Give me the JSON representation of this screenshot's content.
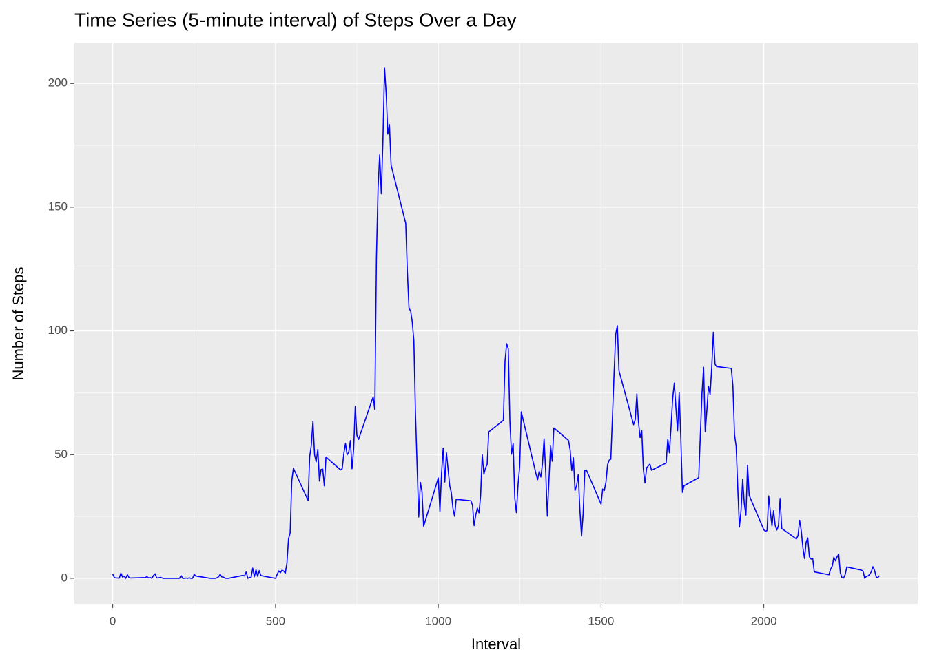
{
  "chart_data": {
    "type": "line",
    "title": "Time Series (5-minute interval) of Steps Over a Day",
    "x_label": "Interval",
    "y_label": "Number of Steps",
    "color": "#0000ff",
    "grid": true,
    "minor_grid": true,
    "xlim": [
      -117.75,
      2472.75
    ],
    "ylim": [
      -10.31,
      216.48
    ],
    "xticks": [
      0,
      500,
      1000,
      1500,
      2000
    ],
    "yticks": [
      0,
      50,
      100,
      150,
      200
    ],
    "x": [
      0,
      5,
      10,
      15,
      20,
      25,
      30,
      35,
      40,
      45,
      50,
      55,
      100,
      105,
      110,
      115,
      120,
      125,
      130,
      135,
      140,
      145,
      150,
      155,
      200,
      205,
      210,
      215,
      220,
      225,
      230,
      235,
      240,
      245,
      250,
      255,
      300,
      305,
      310,
      315,
      320,
      325,
      330,
      335,
      340,
      345,
      350,
      355,
      400,
      405,
      410,
      415,
      420,
      425,
      430,
      435,
      440,
      445,
      450,
      455,
      500,
      505,
      510,
      515,
      520,
      525,
      530,
      535,
      540,
      545,
      550,
      555,
      600,
      605,
      610,
      615,
      620,
      625,
      630,
      635,
      640,
      645,
      650,
      655,
      700,
      705,
      710,
      715,
      720,
      725,
      730,
      735,
      740,
      745,
      750,
      755,
      800,
      805,
      810,
      815,
      820,
      825,
      830,
      835,
      840,
      845,
      850,
      855,
      900,
      905,
      910,
      915,
      920,
      925,
      930,
      935,
      940,
      945,
      950,
      955,
      1000,
      1005,
      1010,
      1015,
      1020,
      1025,
      1030,
      1035,
      1040,
      1045,
      1050,
      1055,
      1100,
      1105,
      1110,
      1115,
      1120,
      1125,
      1130,
      1135,
      1140,
      1145,
      1150,
      1155,
      1200,
      1205,
      1210,
      1215,
      1220,
      1225,
      1230,
      1235,
      1240,
      1245,
      1250,
      1255,
      1300,
      1305,
      1310,
      1315,
      1320,
      1325,
      1330,
      1335,
      1340,
      1345,
      1350,
      1355,
      1400,
      1405,
      1410,
      1415,
      1420,
      1425,
      1430,
      1435,
      1440,
      1445,
      1450,
      1455,
      1500,
      1505,
      1510,
      1515,
      1520,
      1525,
      1530,
      1535,
      1540,
      1545,
      1550,
      1555,
      1600,
      1605,
      1610,
      1615,
      1620,
      1625,
      1630,
      1635,
      1640,
      1645,
      1650,
      1655,
      1700,
      1705,
      1710,
      1715,
      1720,
      1725,
      1730,
      1735,
      1740,
      1745,
      1750,
      1755,
      1800,
      1805,
      1810,
      1815,
      1820,
      1825,
      1830,
      1835,
      1840,
      1845,
      1850,
      1855,
      1900,
      1905,
      1910,
      1915,
      1920,
      1925,
      1930,
      1935,
      1940,
      1945,
      1950,
      1955,
      2000,
      2005,
      2010,
      2015,
      2020,
      2025,
      2030,
      2035,
      2040,
      2045,
      2050,
      2055,
      2100,
      2105,
      2110,
      2115,
      2120,
      2125,
      2130,
      2135,
      2140,
      2145,
      2150,
      2155,
      2200,
      2205,
      2210,
      2215,
      2220,
      2225,
      2230,
      2235,
      2240,
      2245,
      2250,
      2255,
      2300,
      2305,
      2310,
      2315,
      2320,
      2325,
      2330,
      2335,
      2340,
      2345,
      2350,
      2355
    ],
    "values": [
      1.72,
      0.34,
      0.13,
      0.15,
      0.08,
      2.09,
      0.53,
      0.87,
      0,
      1.47,
      0.3,
      0.13,
      0.32,
      0.68,
      0.15,
      0.34,
      0,
      1.11,
      1.83,
      0.17,
      0.17,
      0.38,
      0.26,
      0,
      0,
      0,
      1.13,
      0,
      0,
      0.13,
      0,
      0.23,
      0,
      0,
      1.55,
      0.94,
      0,
      0,
      0,
      0,
      0.21,
      0.62,
      1.62,
      0.58,
      0.49,
      0.08,
      0,
      0,
      1.19,
      0.94,
      2.57,
      0,
      0.34,
      0.36,
      4.11,
      0.66,
      3.49,
      0.83,
      3.11,
      1.11,
      0,
      1.57,
      3,
      2.25,
      3.32,
      2.96,
      2.09,
      6.06,
      16.02,
      18.34,
      39.45,
      44.49,
      31.49,
      49.26,
      53.77,
      63.45,
      49.96,
      47.08,
      52.15,
      39.34,
      44.02,
      44.17,
      37.36,
      49.04,
      43.81,
      44.38,
      50.51,
      54.51,
      49.92,
      50.98,
      55.68,
      44.32,
      52.26,
      69.55,
      57.85,
      56.15,
      73.38,
      68.21,
      129.43,
      157.53,
      171.15,
      155.4,
      177.3,
      206.17,
      195.92,
      179.57,
      183.4,
      167.02,
      143.45,
      124.04,
      109.11,
      108.11,
      103.72,
      95.97,
      66.21,
      45.23,
      24.79,
      38.75,
      34.98,
      21.06,
      40.57,
      26.98,
      42.42,
      52.66,
      38.92,
      50.79,
      44.28,
      37.42,
      34.7,
      28.34,
      25.09,
      31.94,
      31.36,
      29.68,
      21.32,
      25.55,
      28.38,
      26.47,
      33.43,
      49.98,
      42.04,
      44.6,
      46.04,
      59.19,
      63.87,
      87.7,
      94.85,
      92.77,
      63.4,
      50.17,
      54.47,
      32.42,
      26.53,
      37.74,
      45.06,
      67.28,
      42.34,
      39.89,
      43.26,
      40.98,
      46.25,
      56.43,
      42.75,
      25.13,
      39.96,
      53.55,
      47.32,
      60.81,
      55.75,
      51.96,
      43.58,
      48.7,
      35.47,
      37.55,
      41.85,
      27.51,
      17.11,
      26.08,
      43.62,
      43.77,
      30.02,
      36.08,
      35.49,
      38.85,
      45.96,
      47.75,
      48.13,
      65.32,
      82.91,
      98.66,
      102.11,
      83.96,
      62.13,
      64.13,
      74.55,
      63.17,
      56.91,
      59.77,
      43.87,
      38.57,
      44.66,
      45.45,
      46.21,
      43.68,
      46.62,
      56.3,
      50.72,
      61.23,
      72.72,
      78.94,
      68.94,
      59.66,
      75.09,
      56.51,
      34.77,
      37.45,
      40.68,
      58.02,
      74.7,
      85.32,
      59.26,
      67.77,
      77.7,
      74.25,
      85.34,
      99.45,
      86.58,
      85.6,
      84.87,
      77.83,
      58.04,
      53.36,
      36.32,
      20.72,
      27.4,
      40.02,
      30.21,
      25.55,
      45.66,
      33.53,
      19.62,
      19.02,
      19.34,
      33.34,
      26.81,
      21.17,
      27.3,
      21.34,
      19.55,
      21.32,
      32.3,
      20.15,
      15.94,
      17.23,
      23.45,
      19.25,
      12.45,
      8.02,
      14.66,
      16.3,
      8.68,
      7.79,
      8.13,
      2.62,
      1.45,
      3.68,
      4.81,
      8.51,
      7.08,
      8.7,
      9.75,
      2.21,
      0.32,
      0.11,
      1.6,
      4.6,
      3.3,
      2.85,
      0,
      0.83,
      0.96,
      1.58,
      2.6,
      4.7,
      3.3,
      0.64,
      0.23,
      1.08
    ]
  }
}
